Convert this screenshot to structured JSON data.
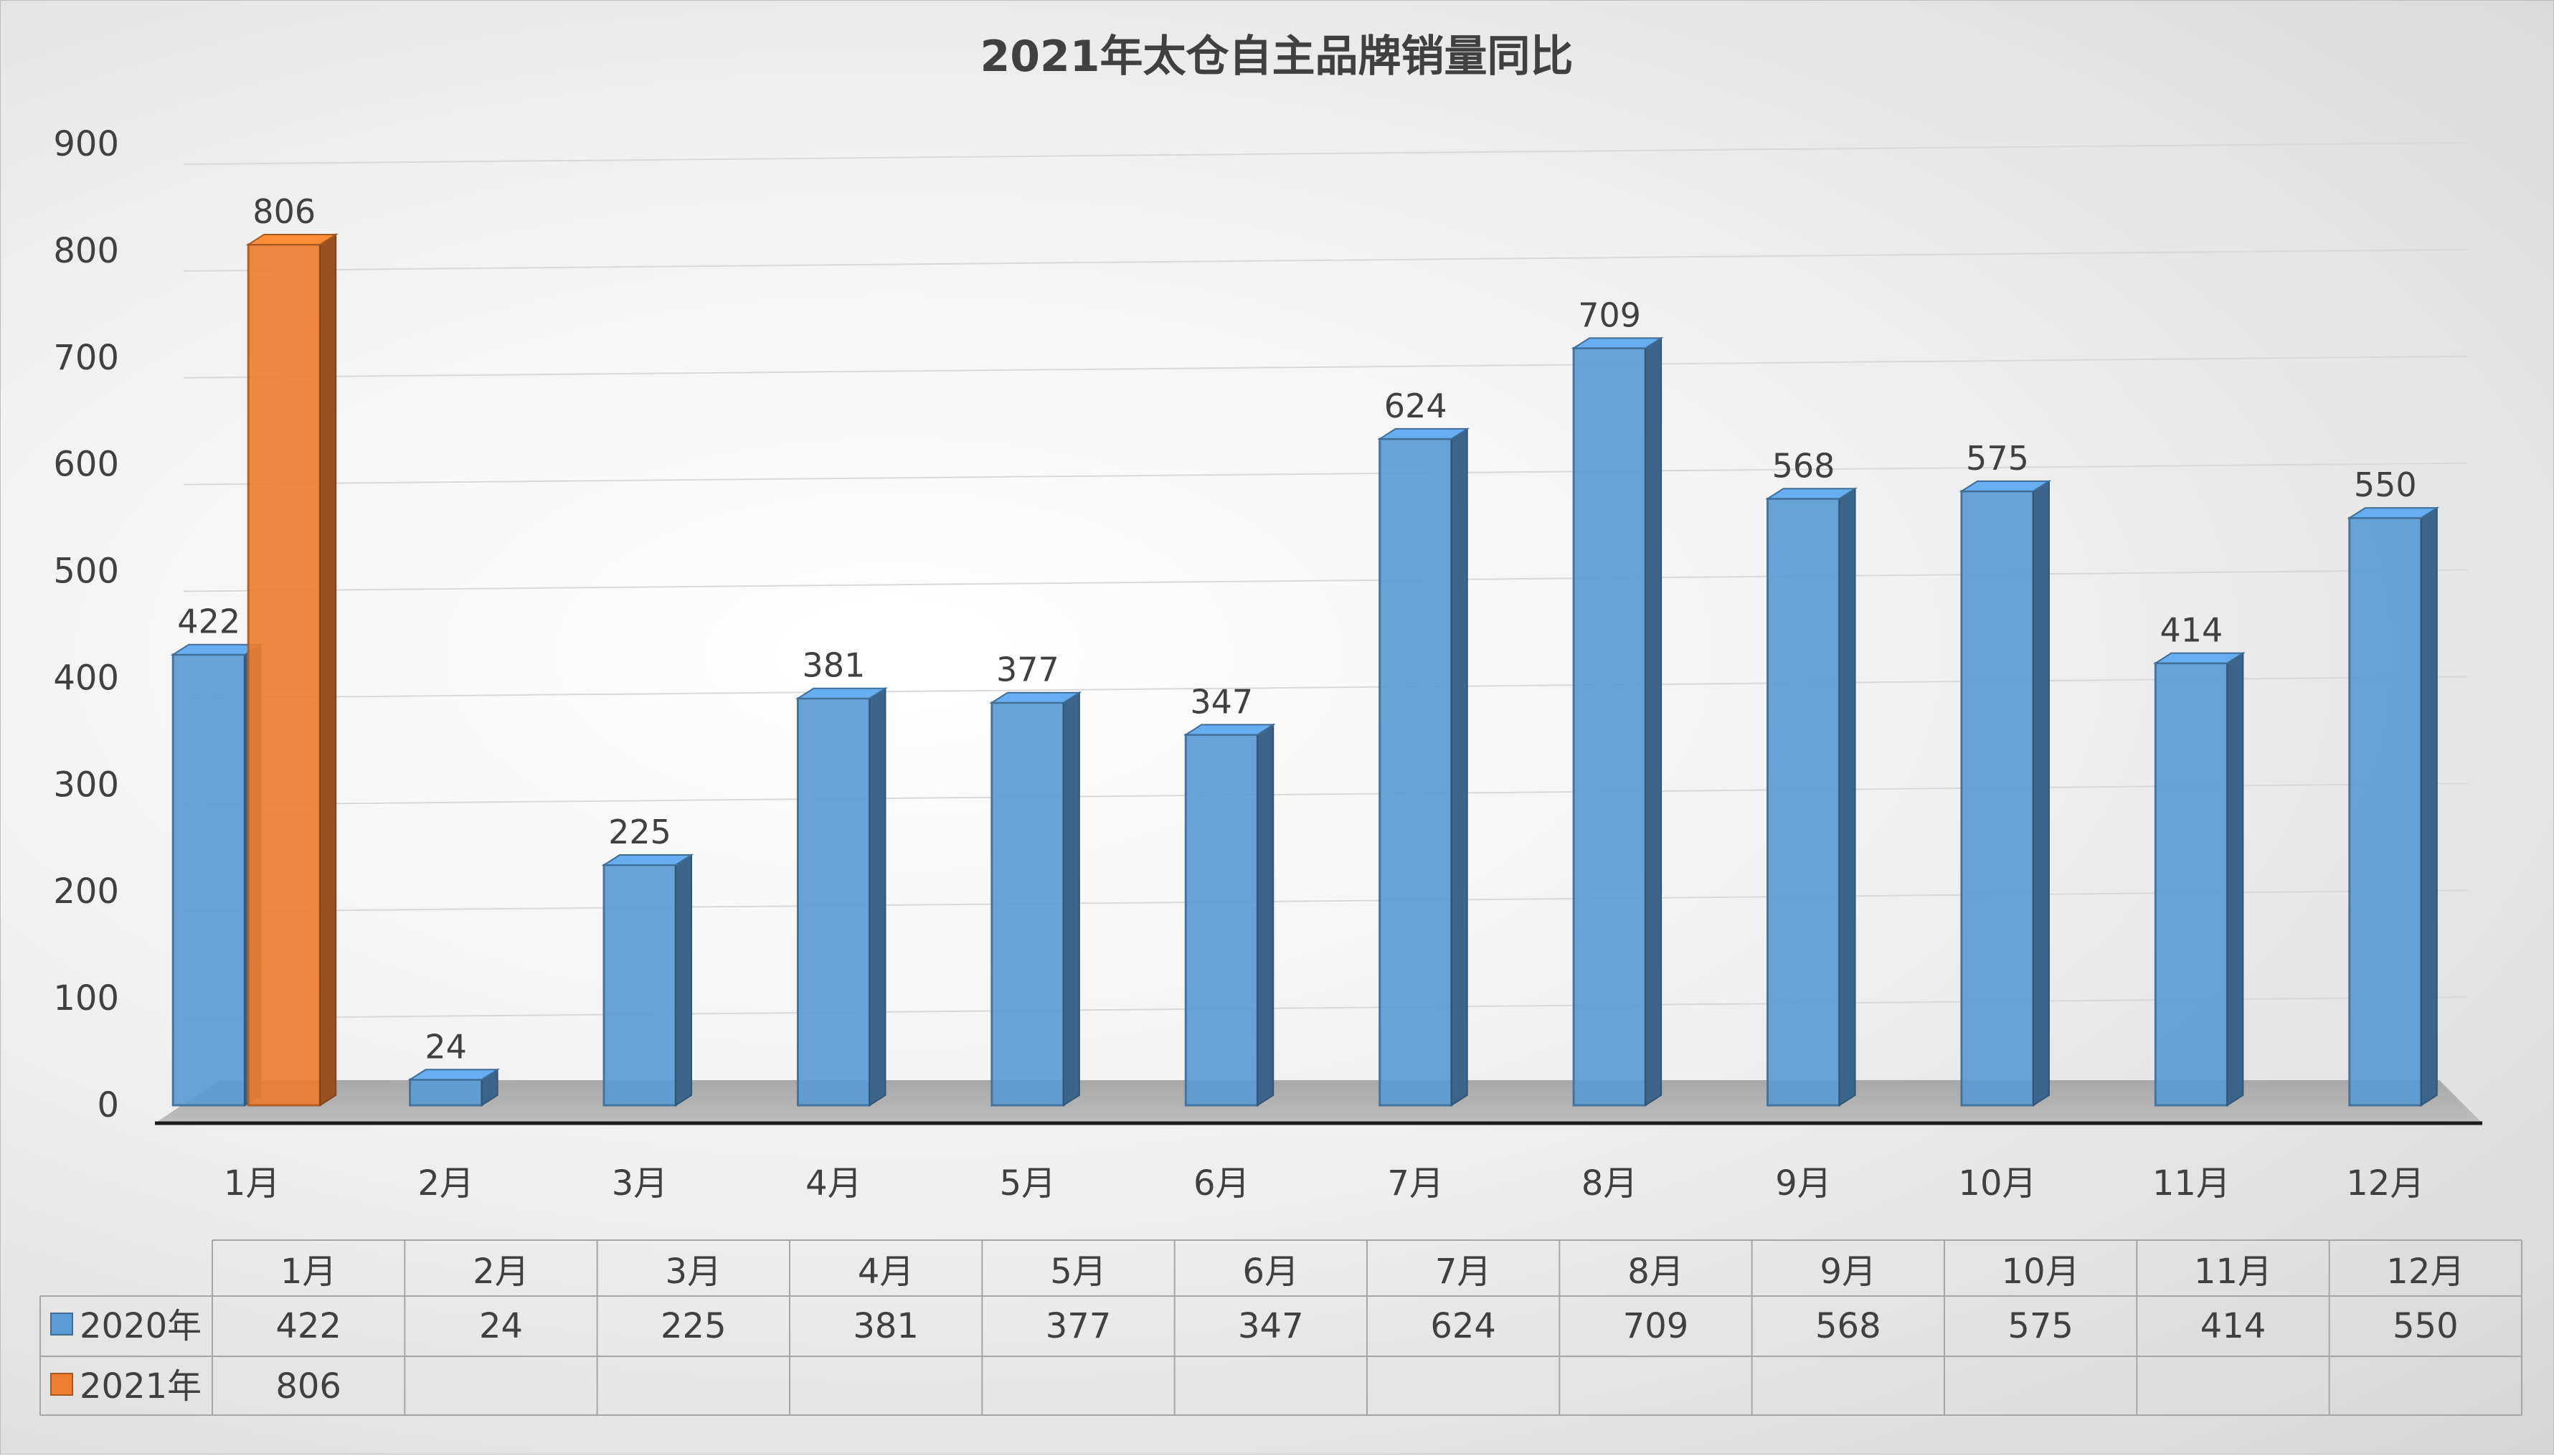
{
  "chart_data": {
    "type": "bar",
    "title": "2021年太仓自主品牌销量同比",
    "categories": [
      "1月",
      "2月",
      "3月",
      "4月",
      "5月",
      "6月",
      "7月",
      "8月",
      "9月",
      "10月",
      "11月",
      "12月"
    ],
    "series": [
      {
        "name": "2020年",
        "color": "#5b9bd5",
        "values": [
          422,
          24,
          225,
          381,
          377,
          347,
          624,
          709,
          568,
          575,
          414,
          550
        ]
      },
      {
        "name": "2021年",
        "color": "#ed7d31",
        "values": [
          806,
          null,
          null,
          null,
          null,
          null,
          null,
          null,
          null,
          null,
          null,
          null
        ]
      }
    ],
    "ylim": [
      0,
      900
    ],
    "yticks": [
      0,
      100,
      200,
      300,
      400,
      500,
      600,
      700,
      800,
      900
    ],
    "grid": true,
    "data_labels": true,
    "data_table": true,
    "style": "3d-clustered-column"
  }
}
